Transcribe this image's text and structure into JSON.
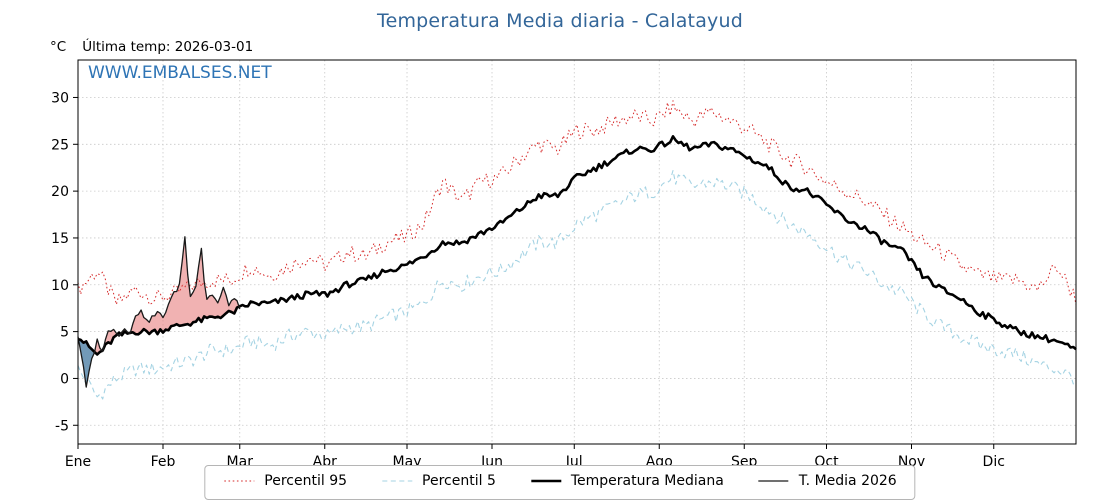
{
  "title": "Temperatura Media diaria - Calatayud",
  "y_unit_label": "°C",
  "last_temp_label": "Última temp: 2026-03-01",
  "watermark": "WWW.EMBALSES.NET",
  "colors": {
    "title": "#336699",
    "watermark": "#2e74b5",
    "grid": "#c9c9c9",
    "axis": "#000000",
    "fill_above": "#e87f7f",
    "fill_below": "#4f81a6"
  },
  "chart_data": {
    "type": "line",
    "title": "Temperatura Media diaria - Calatayud",
    "xlabel": "",
    "ylabel": "°C",
    "ylim": [
      -7,
      34
    ],
    "yticks": [
      -5,
      0,
      5,
      10,
      15,
      20,
      25,
      30
    ],
    "x_months": [
      "Ene",
      "Feb",
      "Mar",
      "Abr",
      "May",
      "Jun",
      "Jul",
      "Ago",
      "Sep",
      "Oct",
      "Nov",
      "Dic"
    ],
    "month_start_days": [
      1,
      32,
      60,
      91,
      121,
      152,
      182,
      213,
      244,
      274,
      305,
      335
    ],
    "days_in_year": 365,
    "grid": true,
    "legend_position": "bottom",
    "series": [
      {
        "name": "Percentil 95",
        "role": "p95",
        "color": "#d62a2a",
        "style": "dotted",
        "width": 1,
        "noise": 0.9,
        "points": [
          [
            1,
            9.5
          ],
          [
            8,
            11.5
          ],
          [
            15,
            8
          ],
          [
            22,
            9.5
          ],
          [
            29,
            8.5
          ],
          [
            36,
            9
          ],
          [
            43,
            10
          ],
          [
            50,
            10.5
          ],
          [
            57,
            10.5
          ],
          [
            64,
            12
          ],
          [
            71,
            11
          ],
          [
            78,
            12
          ],
          [
            85,
            13
          ],
          [
            92,
            12
          ],
          [
            99,
            13.5
          ],
          [
            106,
            13
          ],
          [
            113,
            14.5
          ],
          [
            120,
            15
          ],
          [
            127,
            16.5
          ],
          [
            134,
            21
          ],
          [
            141,
            19
          ],
          [
            148,
            21
          ],
          [
            155,
            21.5
          ],
          [
            162,
            23.5
          ],
          [
            169,
            25
          ],
          [
            176,
            24.5
          ],
          [
            183,
            26.5
          ],
          [
            190,
            26.5
          ],
          [
            197,
            27.5
          ],
          [
            204,
            28
          ],
          [
            211,
            27.5
          ],
          [
            218,
            29
          ],
          [
            225,
            27.5
          ],
          [
            232,
            28.5
          ],
          [
            239,
            27.5
          ],
          [
            246,
            26.5
          ],
          [
            253,
            25
          ],
          [
            260,
            23.5
          ],
          [
            267,
            22.5
          ],
          [
            274,
            21
          ],
          [
            281,
            20
          ],
          [
            288,
            19
          ],
          [
            295,
            17.5
          ],
          [
            302,
            16
          ],
          [
            309,
            14.5
          ],
          [
            316,
            13.5
          ],
          [
            323,
            12
          ],
          [
            330,
            11
          ],
          [
            337,
            10.5
          ],
          [
            344,
            10.5
          ],
          [
            351,
            9.5
          ],
          [
            358,
            12
          ],
          [
            365,
            8.5
          ]
        ]
      },
      {
        "name": "Percentil 5",
        "role": "p5",
        "color": "#a5d3e3",
        "style": "dashed",
        "width": 1.1,
        "noise": 0.8,
        "points": [
          [
            1,
            1
          ],
          [
            8,
            -2
          ],
          [
            15,
            0
          ],
          [
            22,
            1
          ],
          [
            29,
            1
          ],
          [
            36,
            1.5
          ],
          [
            43,
            2
          ],
          [
            50,
            3
          ],
          [
            57,
            3
          ],
          [
            64,
            4
          ],
          [
            71,
            3.5
          ],
          [
            78,
            4.5
          ],
          [
            85,
            5
          ],
          [
            92,
            4.5
          ],
          [
            99,
            5.5
          ],
          [
            106,
            5.5
          ],
          [
            113,
            6.5
          ],
          [
            120,
            7
          ],
          [
            127,
            8
          ],
          [
            134,
            10.5
          ],
          [
            141,
            10
          ],
          [
            148,
            11
          ],
          [
            155,
            11.5
          ],
          [
            162,
            13
          ],
          [
            169,
            14.5
          ],
          [
            176,
            14.5
          ],
          [
            183,
            16.5
          ],
          [
            190,
            17.5
          ],
          [
            197,
            18.5
          ],
          [
            204,
            19.5
          ],
          [
            211,
            20
          ],
          [
            218,
            21.5
          ],
          [
            225,
            20.5
          ],
          [
            232,
            21
          ],
          [
            239,
            20.5
          ],
          [
            246,
            19.5
          ],
          [
            253,
            18
          ],
          [
            260,
            16.5
          ],
          [
            267,
            15.5
          ],
          [
            274,
            14
          ],
          [
            281,
            12.5
          ],
          [
            288,
            11.5
          ],
          [
            295,
            10
          ],
          [
            302,
            9
          ],
          [
            309,
            7
          ],
          [
            316,
            5.5
          ],
          [
            323,
            4.5
          ],
          [
            330,
            3.5
          ],
          [
            337,
            3
          ],
          [
            344,
            2.5
          ],
          [
            351,
            1.5
          ],
          [
            358,
            1
          ],
          [
            365,
            0
          ]
        ]
      },
      {
        "name": "Temperatura Mediana",
        "role": "median",
        "color": "#000000",
        "style": "solid",
        "width": 2.6,
        "noise": 0.35,
        "points": [
          [
            1,
            4.5
          ],
          [
            8,
            2.5
          ],
          [
            15,
            4.5
          ],
          [
            22,
            5
          ],
          [
            29,
            5
          ],
          [
            36,
            5.5
          ],
          [
            43,
            6
          ],
          [
            50,
            6.5
          ],
          [
            57,
            7
          ],
          [
            64,
            8
          ],
          [
            71,
            8
          ],
          [
            78,
            8.5
          ],
          [
            85,
            9
          ],
          [
            92,
            9
          ],
          [
            99,
            10
          ],
          [
            106,
            10.5
          ],
          [
            113,
            11.5
          ],
          [
            120,
            12
          ],
          [
            127,
            13
          ],
          [
            134,
            14.5
          ],
          [
            141,
            14.5
          ],
          [
            148,
            15.5
          ],
          [
            155,
            16.5
          ],
          [
            162,
            18
          ],
          [
            169,
            19.5
          ],
          [
            176,
            19.5
          ],
          [
            183,
            21.5
          ],
          [
            190,
            22.5
          ],
          [
            197,
            23.5
          ],
          [
            204,
            24.5
          ],
          [
            211,
            24.5
          ],
          [
            218,
            25.5
          ],
          [
            225,
            24.5
          ],
          [
            232,
            25
          ],
          [
            239,
            24.5
          ],
          [
            246,
            23.5
          ],
          [
            253,
            22.5
          ],
          [
            260,
            20.5
          ],
          [
            267,
            20
          ],
          [
            274,
            18.5
          ],
          [
            281,
            17
          ],
          [
            288,
            16
          ],
          [
            295,
            14.5
          ],
          [
            302,
            13.5
          ],
          [
            309,
            11
          ],
          [
            316,
            9.5
          ],
          [
            323,
            8.5
          ],
          [
            330,
            7
          ],
          [
            337,
            6
          ],
          [
            344,
            5
          ],
          [
            351,
            4.5
          ],
          [
            358,
            4
          ],
          [
            365,
            3
          ]
        ]
      },
      {
        "name": "T. Media 2026",
        "role": "current",
        "color": "#1a1a1a",
        "style": "solid",
        "width": 1.3,
        "noise": 0.3,
        "fill_vs_median": true,
        "points": [
          [
            1,
            4.5
          ],
          [
            2,
            3
          ],
          [
            4,
            -1
          ],
          [
            6,
            2
          ],
          [
            8,
            4
          ],
          [
            10,
            3
          ],
          [
            12,
            5
          ],
          [
            14,
            5.5
          ],
          [
            16,
            4.5
          ],
          [
            18,
            5.5
          ],
          [
            20,
            5
          ],
          [
            22,
            6.5
          ],
          [
            24,
            7.5
          ],
          [
            26,
            6
          ],
          [
            28,
            6.5
          ],
          [
            30,
            7
          ],
          [
            32,
            6.5
          ],
          [
            34,
            8
          ],
          [
            36,
            9
          ],
          [
            38,
            10
          ],
          [
            40,
            15.2
          ],
          [
            41,
            11
          ],
          [
            42,
            9
          ],
          [
            44,
            10
          ],
          [
            46,
            14
          ],
          [
            47,
            10.5
          ],
          [
            48,
            8.5
          ],
          [
            50,
            9
          ],
          [
            52,
            8
          ],
          [
            54,
            9.5
          ],
          [
            56,
            8
          ],
          [
            58,
            8.5
          ],
          [
            60,
            7.5
          ]
        ]
      }
    ]
  }
}
